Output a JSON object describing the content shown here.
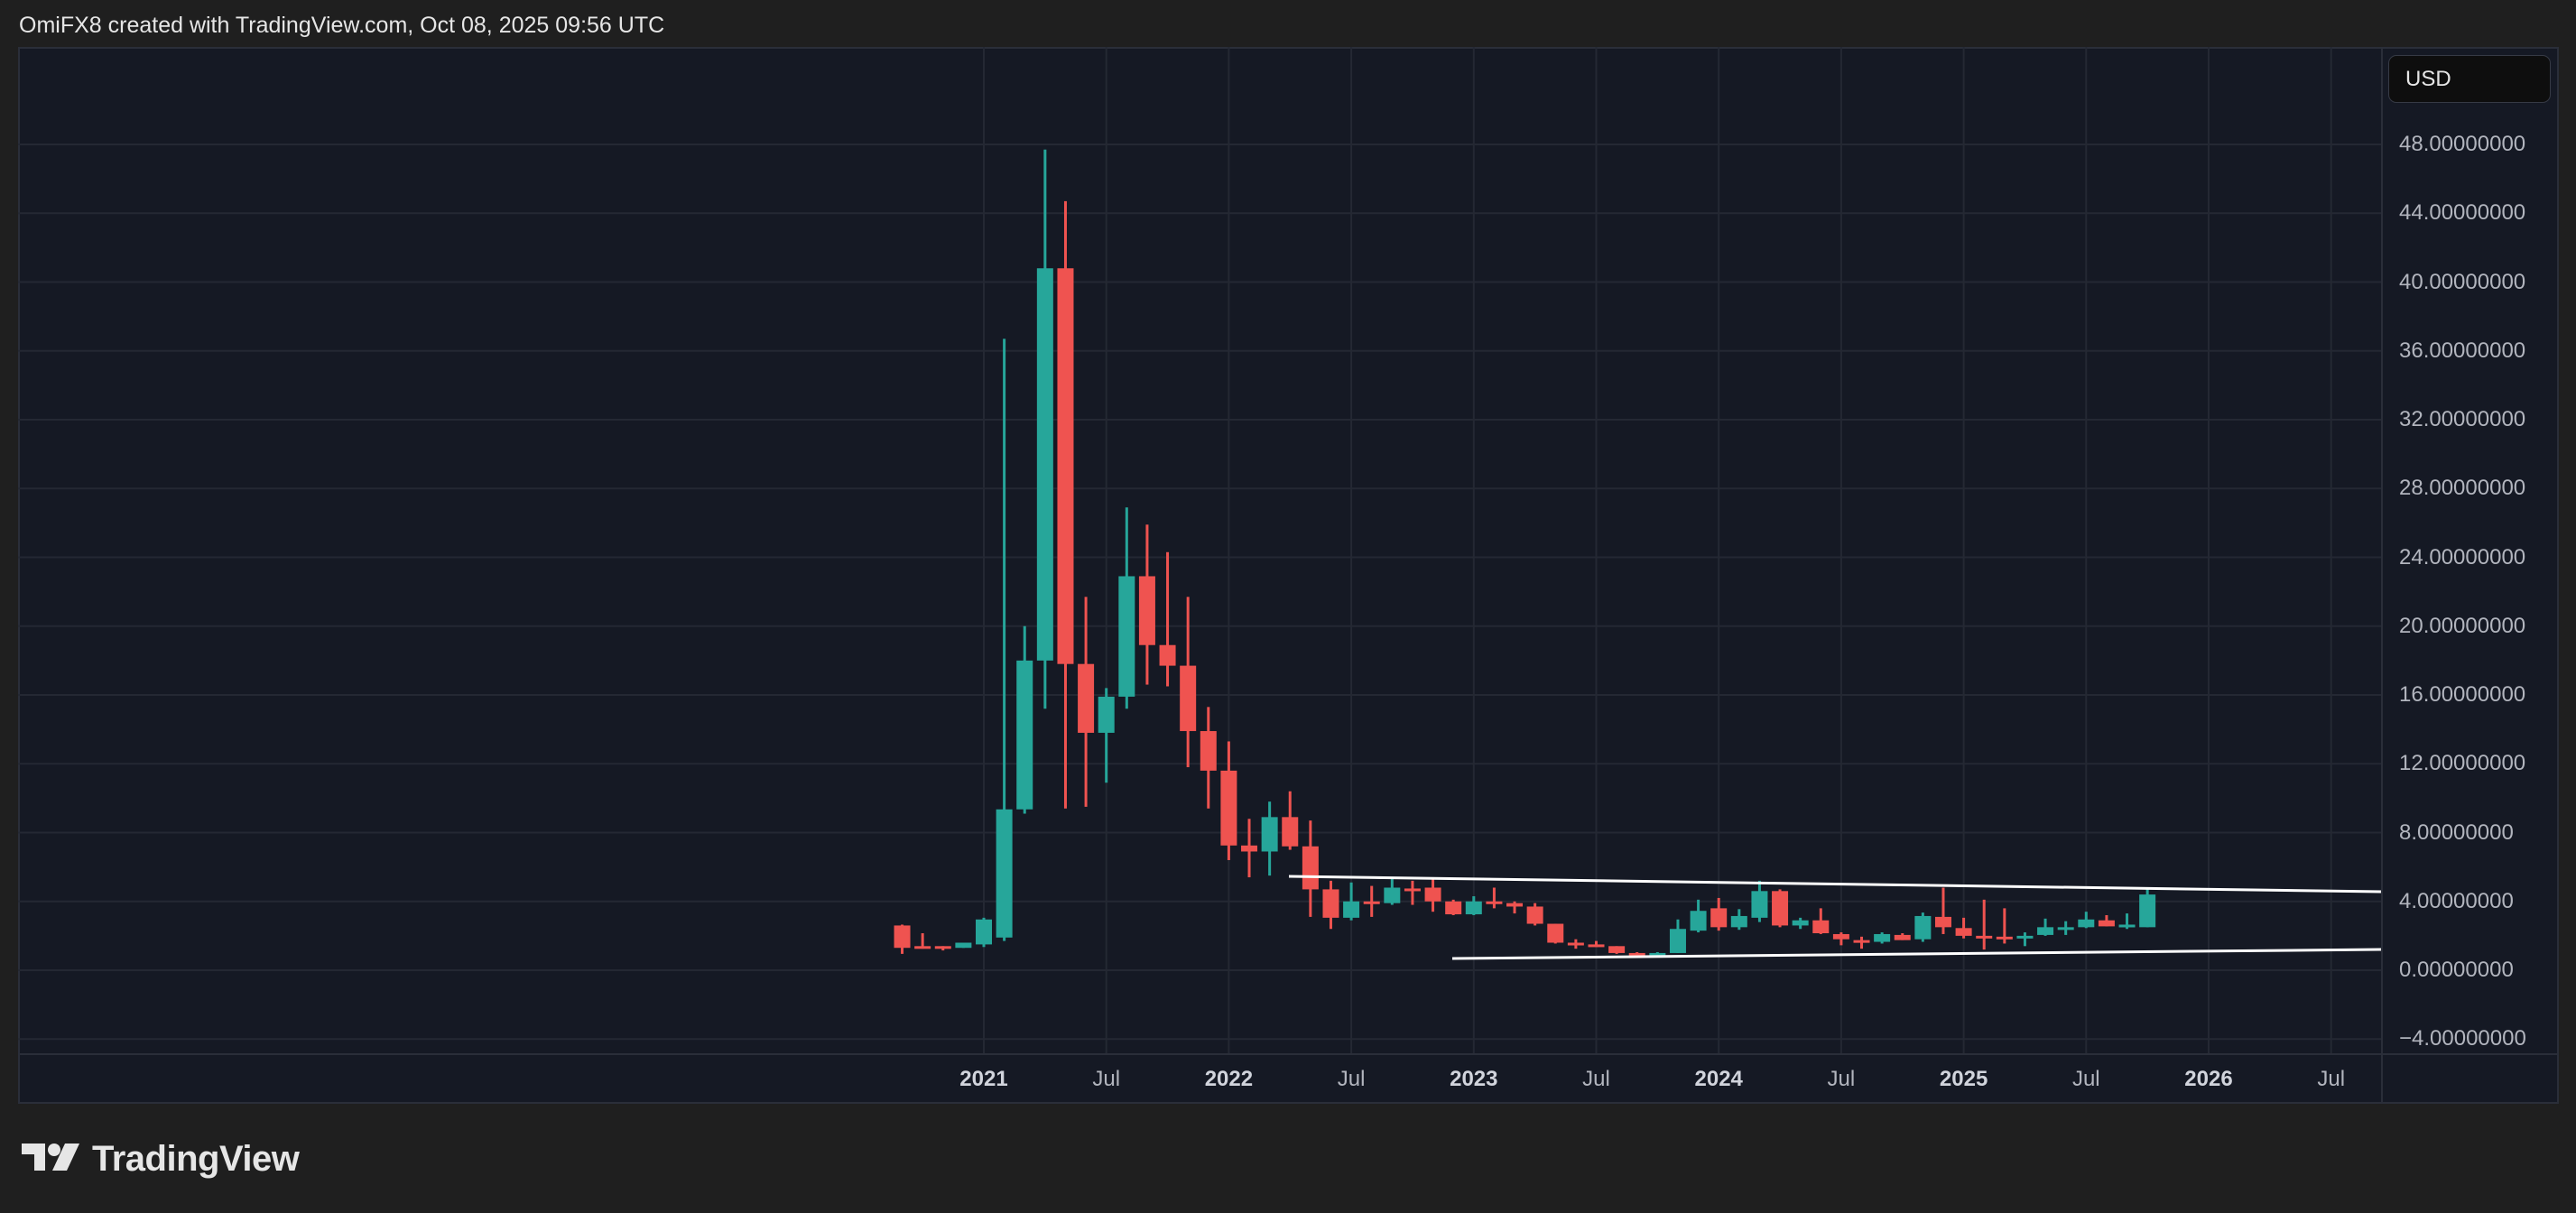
{
  "header": {
    "attribution": "OmiFX8 created with TradingView.com, Oct 08, 2025 09:56 UTC"
  },
  "currency_button": {
    "label": "USD"
  },
  "branding": {
    "logo_text": "TradingView",
    "logo_icon": "tradingview-logo-icon"
  },
  "colors": {
    "background": "#1f1f1f",
    "pane": "#151924",
    "grid": "#242833",
    "up": "#26a69a",
    "down": "#ef5350",
    "trendline": "#ffffff",
    "axis_text": "#b2b5be"
  },
  "chart_data": {
    "type": "candlestick",
    "title": "",
    "interval": "1M",
    "xlabel": "",
    "ylabel": "USD",
    "ylim": [
      -4.6,
      53.8
    ],
    "grid": true,
    "y_ticks": [
      "48.00000000",
      "44.00000000",
      "40.00000000",
      "36.00000000",
      "32.00000000",
      "28.00000000",
      "24.00000000",
      "20.00000000",
      "16.00000000",
      "12.00000000",
      "8.00000000",
      "4.00000000",
      "0.00000000",
      "−4.00000000"
    ],
    "y_tick_values": [
      48,
      44,
      40,
      36,
      32,
      28,
      24,
      20,
      16,
      12,
      8,
      4,
      0,
      -4
    ],
    "x_ticks": [
      {
        "label": "2021",
        "t": 2021.0,
        "year": true
      },
      {
        "label": "Jul",
        "t": 2021.5,
        "year": false
      },
      {
        "label": "2022",
        "t": 2022.0,
        "year": true
      },
      {
        "label": "Jul",
        "t": 2022.5,
        "year": false
      },
      {
        "label": "2023",
        "t": 2023.0,
        "year": true
      },
      {
        "label": "Jul",
        "t": 2023.5,
        "year": false
      },
      {
        "label": "2024",
        "t": 2024.0,
        "year": true
      },
      {
        "label": "Jul",
        "t": 2024.5,
        "year": false
      },
      {
        "label": "2025",
        "t": 2025.0,
        "year": true
      },
      {
        "label": "Jul",
        "t": 2025.5,
        "year": false
      },
      {
        "label": "2026",
        "t": 2026.0,
        "year": true
      },
      {
        "label": "Jul",
        "t": 2026.5,
        "year": false
      }
    ],
    "candles": [
      {
        "d": "2020-09",
        "o": 2.6,
        "h": 2.65,
        "l": 0.95,
        "c": 1.3
      },
      {
        "d": "2020-10",
        "o": 1.4,
        "h": 2.15,
        "l": 1.25,
        "c": 1.3
      },
      {
        "d": "2020-11",
        "o": 1.4,
        "h": 1.4,
        "l": 1.15,
        "c": 1.3
      },
      {
        "d": "2020-12",
        "o": 1.3,
        "h": 1.6,
        "l": 1.3,
        "c": 1.6
      },
      {
        "d": "2021-01",
        "o": 1.5,
        "h": 3.05,
        "l": 1.35,
        "c": 2.95
      },
      {
        "d": "2021-02",
        "o": 1.9,
        "h": 36.7,
        "l": 1.7,
        "c": 9.35
      },
      {
        "d": "2021-03",
        "o": 9.35,
        "h": 20.0,
        "l": 9.1,
        "c": 18.0
      },
      {
        "d": "2021-04",
        "o": 18.0,
        "h": 47.7,
        "l": 15.2,
        "c": 40.8
      },
      {
        "d": "2021-05",
        "o": 40.8,
        "h": 44.7,
        "l": 9.4,
        "c": 17.8
      },
      {
        "d": "2021-06",
        "o": 17.8,
        "h": 21.7,
        "l": 9.5,
        "c": 13.8
      },
      {
        "d": "2021-07",
        "o": 13.8,
        "h": 16.4,
        "l": 10.9,
        "c": 15.9
      },
      {
        "d": "2021-08",
        "o": 15.9,
        "h": 26.9,
        "l": 15.2,
        "c": 22.9
      },
      {
        "d": "2021-09",
        "o": 22.9,
        "h": 25.9,
        "l": 16.6,
        "c": 18.9
      },
      {
        "d": "2021-10",
        "o": 18.9,
        "h": 24.3,
        "l": 16.5,
        "c": 17.7
      },
      {
        "d": "2021-11",
        "o": 17.7,
        "h": 21.7,
        "l": 11.8,
        "c": 13.9
      },
      {
        "d": "2021-12",
        "o": 13.9,
        "h": 15.3,
        "l": 9.4,
        "c": 11.6
      },
      {
        "d": "2022-01",
        "o": 11.6,
        "h": 13.3,
        "l": 6.4,
        "c": 7.25
      },
      {
        "d": "2022-02",
        "o": 7.25,
        "h": 8.8,
        "l": 5.4,
        "c": 6.9
      },
      {
        "d": "2022-03",
        "o": 6.9,
        "h": 9.8,
        "l": 5.5,
        "c": 8.9
      },
      {
        "d": "2022-04",
        "o": 8.9,
        "h": 10.4,
        "l": 7.0,
        "c": 7.2
      },
      {
        "d": "2022-05",
        "o": 7.2,
        "h": 8.7,
        "l": 3.1,
        "c": 4.7
      },
      {
        "d": "2022-06",
        "o": 4.7,
        "h": 5.2,
        "l": 2.4,
        "c": 3.05
      },
      {
        "d": "2022-07",
        "o": 3.05,
        "h": 5.1,
        "l": 2.9,
        "c": 4.0
      },
      {
        "d": "2022-08",
        "o": 4.0,
        "h": 4.9,
        "l": 3.1,
        "c": 3.9
      },
      {
        "d": "2022-09",
        "o": 3.9,
        "h": 5.3,
        "l": 3.8,
        "c": 4.8
      },
      {
        "d": "2022-10",
        "o": 4.75,
        "h": 5.2,
        "l": 3.8,
        "c": 4.6
      },
      {
        "d": "2022-11",
        "o": 4.8,
        "h": 5.3,
        "l": 3.4,
        "c": 4.0
      },
      {
        "d": "2022-12",
        "o": 4.0,
        "h": 4.1,
        "l": 3.2,
        "c": 3.25
      },
      {
        "d": "2023-01",
        "o": 3.25,
        "h": 4.3,
        "l": 3.2,
        "c": 4.0
      },
      {
        "d": "2023-02",
        "o": 4.0,
        "h": 4.8,
        "l": 3.6,
        "c": 3.85
      },
      {
        "d": "2023-03",
        "o": 3.9,
        "h": 4.0,
        "l": 3.3,
        "c": 3.7
      },
      {
        "d": "2023-04",
        "o": 3.7,
        "h": 3.9,
        "l": 2.6,
        "c": 2.7
      },
      {
        "d": "2023-05",
        "o": 2.7,
        "h": 2.7,
        "l": 1.55,
        "c": 1.6
      },
      {
        "d": "2023-06",
        "o": 1.6,
        "h": 1.8,
        "l": 1.25,
        "c": 1.5
      },
      {
        "d": "2023-07",
        "o": 1.5,
        "h": 1.7,
        "l": 1.35,
        "c": 1.4
      },
      {
        "d": "2023-08",
        "o": 1.4,
        "h": 1.4,
        "l": 0.95,
        "c": 1.0
      },
      {
        "d": "2023-09",
        "o": 1.0,
        "h": 1.05,
        "l": 0.9,
        "c": 0.95
      },
      {
        "d": "2023-10",
        "o": 0.95,
        "h": 1.05,
        "l": 0.75,
        "c": 1.0
      },
      {
        "d": "2023-11",
        "o": 1.0,
        "h": 2.95,
        "l": 1.0,
        "c": 2.4
      },
      {
        "d": "2023-12",
        "o": 2.3,
        "h": 4.1,
        "l": 2.2,
        "c": 3.45
      },
      {
        "d": "2024-01",
        "o": 3.6,
        "h": 4.2,
        "l": 2.3,
        "c": 2.5
      },
      {
        "d": "2024-02",
        "o": 2.5,
        "h": 3.55,
        "l": 2.35,
        "c": 3.15
      },
      {
        "d": "2024-03",
        "o": 3.05,
        "h": 5.2,
        "l": 2.8,
        "c": 4.6
      },
      {
        "d": "2024-04",
        "o": 4.6,
        "h": 4.7,
        "l": 2.5,
        "c": 2.6
      },
      {
        "d": "2024-05",
        "o": 2.6,
        "h": 3.05,
        "l": 2.4,
        "c": 2.9
      },
      {
        "d": "2024-06",
        "o": 2.9,
        "h": 3.6,
        "l": 2.1,
        "c": 2.15
      },
      {
        "d": "2024-07",
        "o": 2.1,
        "h": 2.2,
        "l": 1.45,
        "c": 1.8
      },
      {
        "d": "2024-08",
        "o": 1.75,
        "h": 1.95,
        "l": 1.25,
        "c": 1.65
      },
      {
        "d": "2024-09",
        "o": 1.65,
        "h": 2.2,
        "l": 1.55,
        "c": 2.1
      },
      {
        "d": "2024-10",
        "o": 2.05,
        "h": 2.15,
        "l": 1.75,
        "c": 1.75
      },
      {
        "d": "2024-11",
        "o": 1.8,
        "h": 3.35,
        "l": 1.65,
        "c": 3.15
      },
      {
        "d": "2024-12",
        "o": 3.1,
        "h": 4.8,
        "l": 2.1,
        "c": 2.5
      },
      {
        "d": "2025-01",
        "o": 2.45,
        "h": 3.05,
        "l": 1.85,
        "c": 2.0
      },
      {
        "d": "2025-02",
        "o": 2.0,
        "h": 4.1,
        "l": 1.2,
        "c": 1.95
      },
      {
        "d": "2025-03",
        "o": 1.95,
        "h": 3.6,
        "l": 1.55,
        "c": 1.9
      },
      {
        "d": "2025-04",
        "o": 1.9,
        "h": 2.2,
        "l": 1.4,
        "c": 2.0
      },
      {
        "d": "2025-05",
        "o": 2.05,
        "h": 3.0,
        "l": 2.0,
        "c": 2.5
      },
      {
        "d": "2025-06",
        "o": 2.4,
        "h": 2.85,
        "l": 2.05,
        "c": 2.5
      },
      {
        "d": "2025-07",
        "o": 2.5,
        "h": 3.4,
        "l": 2.45,
        "c": 2.95
      },
      {
        "d": "2025-08",
        "o": 2.9,
        "h": 3.2,
        "l": 2.55,
        "c": 2.55
      },
      {
        "d": "2025-09",
        "o": 2.55,
        "h": 3.3,
        "l": 2.4,
        "c": 2.65
      },
      {
        "d": "2025-10",
        "o": 2.5,
        "h": 4.8,
        "l": 2.5,
        "c": 4.4
      }
    ],
    "trendlines": [
      {
        "name": "upper-resistance",
        "x1": 1428,
        "y1": 971,
        "x2": 2638,
        "y2": 988
      },
      {
        "name": "lower-support",
        "x1": 1609,
        "y1": 1062,
        "x2": 2638,
        "y2": 1052
      }
    ],
    "annotations": []
  }
}
